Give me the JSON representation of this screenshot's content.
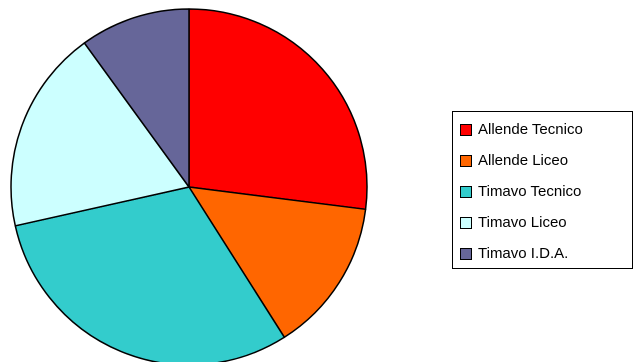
{
  "chart_data": {
    "type": "pie",
    "title": "",
    "start_angle": "12 o'clock",
    "direction": "clockwise",
    "slices": [
      {
        "label": "Allende Tecnico",
        "value": 27.0,
        "color": "#ff0000"
      },
      {
        "label": "Allende Liceo",
        "value": 14.0,
        "color": "#ff6600"
      },
      {
        "label": "Timavo Tecnico",
        "value": 30.5,
        "color": "#33cccc"
      },
      {
        "label": "Timavo Liceo",
        "value": 18.5,
        "color": "#ccffff"
      },
      {
        "label": "Timavo I.D.A.",
        "value": 10.0,
        "color": "#666699"
      }
    ],
    "legend_position": "right"
  }
}
